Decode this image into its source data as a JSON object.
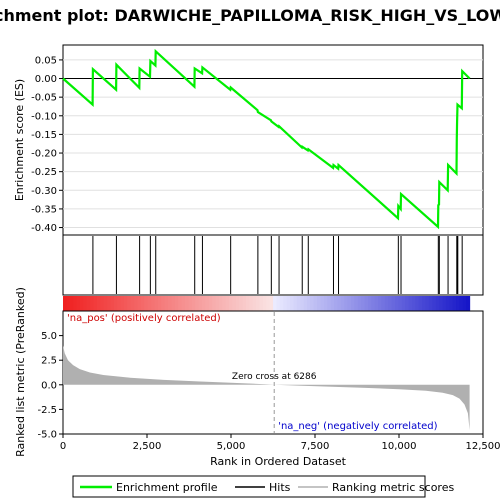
{
  "chart_data": {
    "type": "line",
    "title": "Enrichment plot: DARWICHE_PAPILLOMA_RISK_HIGH_VS_LOW_DN",
    "top_panel": {
      "ylabel": "Enrichment score (ES)",
      "ylim": [
        -0.42,
        0.09
      ],
      "yticks": [
        0.05,
        0.0,
        -0.05,
        -0.1,
        -0.15,
        -0.2,
        -0.25,
        -0.3,
        -0.35,
        -0.4
      ],
      "ytick_labels": [
        "0.05",
        "0.00",
        "-0.05",
        "-0.10",
        "-0.15",
        "-0.20",
        "-0.25",
        "-0.30",
        "-0.35",
        "-0.40"
      ],
      "series_color": "#00ee00"
    },
    "hits": [
      890,
      1590,
      2280,
      2600,
      2760,
      3920,
      4150,
      4990,
      5800,
      6200,
      6430,
      7120,
      7300,
      8050,
      8200,
      9980,
      10060,
      11170,
      11200,
      11460,
      11720,
      11730,
      11750,
      11880
    ],
    "es_path": [
      [
        0,
        0.0
      ],
      [
        880,
        -0.07
      ],
      [
        890,
        0.025
      ],
      [
        1580,
        -0.03
      ],
      [
        1590,
        0.037
      ],
      [
        2270,
        -0.025
      ],
      [
        2280,
        0.027
      ],
      [
        2590,
        0.005
      ],
      [
        2600,
        0.047
      ],
      [
        2750,
        0.035
      ],
      [
        2760,
        0.073
      ],
      [
        3910,
        -0.022
      ],
      [
        3920,
        0.027
      ],
      [
        4140,
        0.014
      ],
      [
        4150,
        0.03
      ],
      [
        4980,
        -0.03
      ],
      [
        4990,
        -0.024
      ],
      [
        5790,
        -0.085
      ],
      [
        5800,
        -0.09
      ],
      [
        6190,
        -0.112
      ],
      [
        6200,
        -0.115
      ],
      [
        6420,
        -0.13
      ],
      [
        6430,
        -0.128
      ],
      [
        7110,
        -0.185
      ],
      [
        7120,
        -0.183
      ],
      [
        7290,
        -0.193
      ],
      [
        7300,
        -0.19
      ],
      [
        8040,
        -0.24
      ],
      [
        8050,
        -0.232
      ],
      [
        8190,
        -0.242
      ],
      [
        8200,
        -0.232
      ],
      [
        9970,
        -0.375
      ],
      [
        9980,
        -0.342
      ],
      [
        10050,
        -0.35
      ],
      [
        10060,
        -0.31
      ],
      [
        11160,
        -0.398
      ],
      [
        11170,
        -0.34
      ],
      [
        11190,
        -0.338
      ],
      [
        11200,
        -0.278
      ],
      [
        11450,
        -0.3
      ],
      [
        11460,
        -0.232
      ],
      [
        11710,
        -0.255
      ],
      [
        11720,
        -0.16
      ],
      [
        11730,
        -0.115
      ],
      [
        11740,
        -0.07
      ],
      [
        11870,
        -0.08
      ],
      [
        11880,
        0.02
      ],
      [
        12100,
        0.0
      ]
    ],
    "bottom_panel": {
      "xlabel": "Rank in Ordered Dataset",
      "ylabel": "Ranked list metric (PreRanked)",
      "xlim": [
        0,
        12500
      ],
      "ylim": [
        -5.0,
        7.5
      ],
      "xticks": [
        0,
        2500,
        5000,
        7500,
        10000,
        12500
      ],
      "xtick_labels": [
        "0",
        "2,500",
        "5,000",
        "7,500",
        "10,000",
        "12,500"
      ],
      "yticks": [
        5.0,
        2.5,
        0.0,
        -2.5,
        -5.0
      ],
      "ytick_labels": [
        "5.0",
        "2.5",
        "0.0",
        "-2.5",
        "-5.0"
      ],
      "metric_profile": [
        [
          0,
          4.0
        ],
        [
          50,
          3.2
        ],
        [
          150,
          2.5
        ],
        [
          300,
          2.0
        ],
        [
          500,
          1.6
        ],
        [
          800,
          1.25
        ],
        [
          1200,
          1.0
        ],
        [
          2000,
          0.72
        ],
        [
          3000,
          0.5
        ],
        [
          4000,
          0.35
        ],
        [
          5000,
          0.2
        ],
        [
          6000,
          0.06
        ],
        [
          6286,
          0.0
        ],
        [
          7000,
          -0.08
        ],
        [
          8000,
          -0.2
        ],
        [
          9000,
          -0.32
        ],
        [
          10000,
          -0.45
        ],
        [
          10800,
          -0.6
        ],
        [
          11300,
          -0.8
        ],
        [
          11600,
          -1.05
        ],
        [
          11800,
          -1.4
        ],
        [
          11950,
          -2.0
        ],
        [
          12050,
          -2.9
        ],
        [
          12100,
          -4.6
        ]
      ],
      "zero_cross_rank": 6286,
      "zero_cross_label": "Zero cross at 6286",
      "pos_label": "'na_pos' (positively correlated)",
      "neg_label": "'na_neg' (negatively correlated)"
    },
    "legend": {
      "items": [
        {
          "label": "Enrichment profile",
          "color": "#00ee00"
        },
        {
          "label": "Hits",
          "color": "#000000"
        },
        {
          "label": "Ranking metric scores",
          "color": "#b0b0b0"
        }
      ]
    }
  }
}
